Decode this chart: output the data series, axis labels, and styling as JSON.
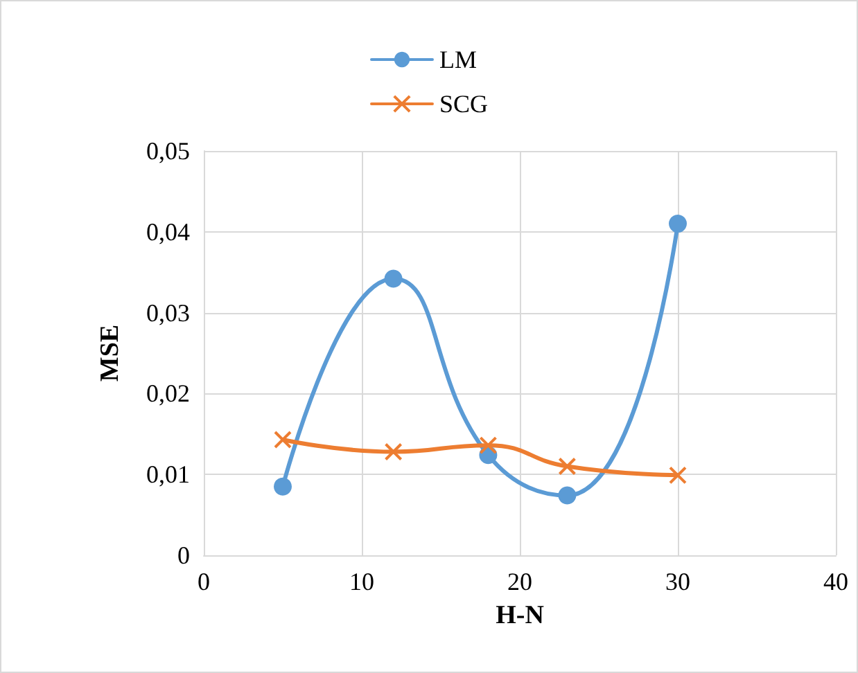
{
  "chart_data": {
    "type": "line",
    "xlabel": "H-N",
    "ylabel": "MSE",
    "x": [
      5,
      12,
      18,
      23,
      30
    ],
    "series": [
      {
        "name": "LM",
        "color": "#5b9bd5",
        "marker": "circle",
        "values": [
          0.0085,
          0.0342,
          0.0124,
          0.0074,
          0.041
        ]
      },
      {
        "name": "SCG",
        "color": "#ed7d31",
        "marker": "cross",
        "values": [
          0.0143,
          0.0128,
          0.0136,
          0.011,
          0.0099
        ]
      }
    ],
    "xlim": [
      0,
      40
    ],
    "xticks": [
      0,
      10,
      20,
      30,
      40
    ],
    "ylim": [
      0,
      0.05
    ],
    "yticks": [
      0,
      {
        "value": 0.01,
        "label": "0,01"
      },
      {
        "value": 0.02,
        "label": "0,02"
      },
      {
        "value": 0.03,
        "label": "0,03"
      },
      {
        "value": 0.04,
        "label": "0,04"
      },
      {
        "value": 0.05,
        "label": "0,05"
      }
    ],
    "grid": true,
    "legend": "top",
    "line_style": "solid"
  }
}
